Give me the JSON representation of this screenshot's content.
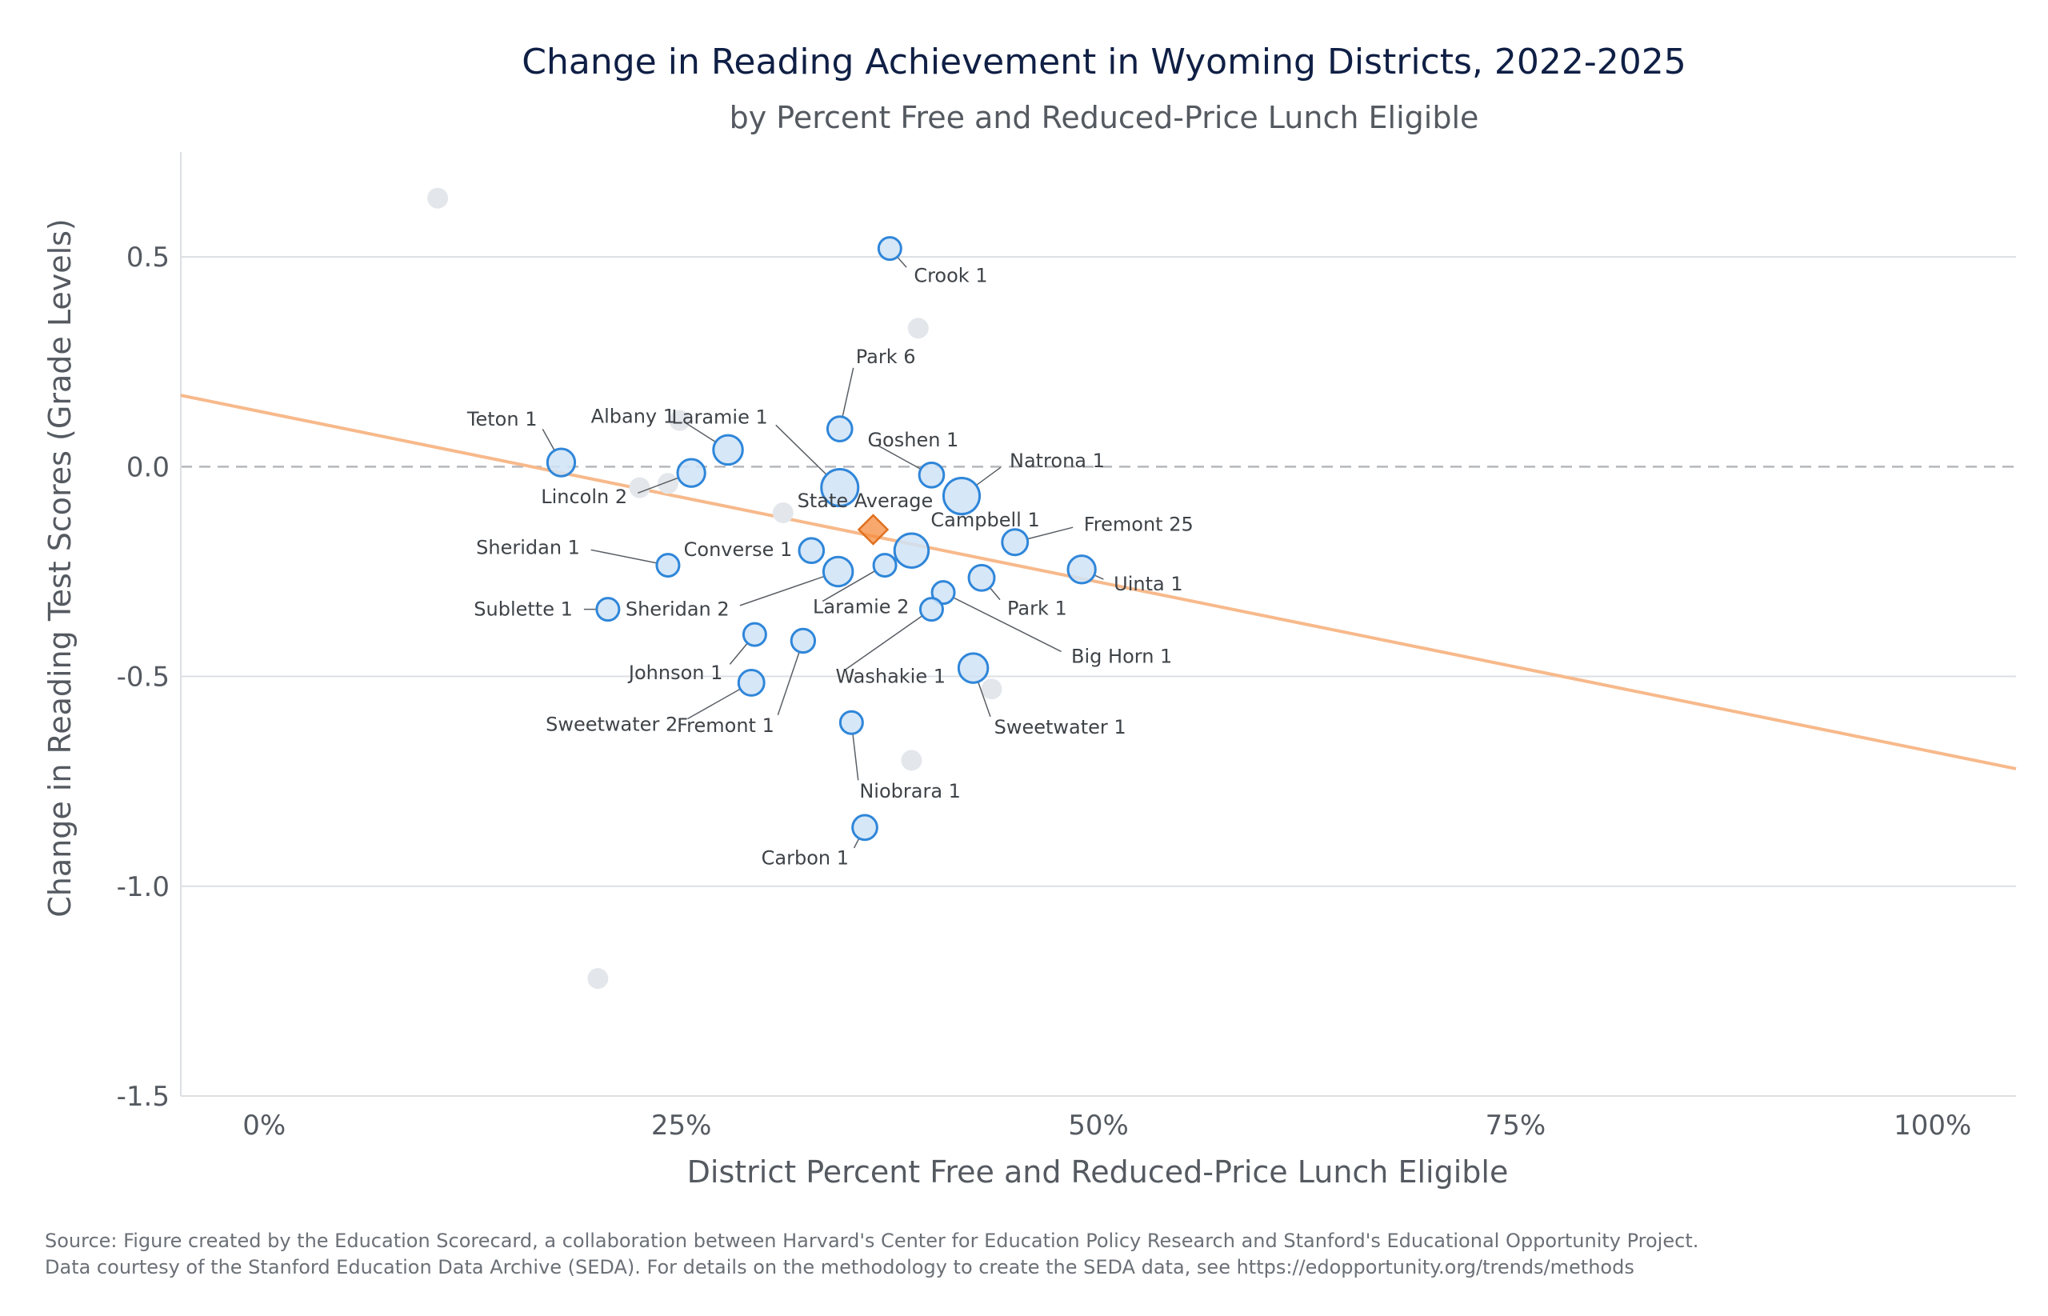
{
  "chart_data": {
    "type": "scatter",
    "title": "Change in Reading Achievement in Wyoming Districts, 2022-2025",
    "subtitle": "by Percent Free and Reduced-Price Lunch Eligible",
    "xlabel": "District Percent Free and Reduced-Price Lunch Eligible",
    "ylabel": "Change in Reading Test Scores (Grade Levels)",
    "xlim": [
      -5,
      105
    ],
    "ylim": [
      -1.5,
      0.75
    ],
    "x_ticks": [
      0,
      25,
      50,
      75,
      100
    ],
    "x_tick_labels": [
      "0%",
      "25%",
      "50%",
      "75%",
      "100%"
    ],
    "y_ticks": [
      0.5,
      0.0,
      -0.5,
      -1.0,
      -1.5
    ],
    "y_tick_labels": [
      "0.5",
      "0.0",
      "-0.5",
      "-1.0",
      "-1.5"
    ],
    "reference_line_y": 0.0,
    "trend_line": {
      "x": [
        -5,
        105
      ],
      "y": [
        0.17,
        -0.72
      ],
      "color": "#f7b98b"
    },
    "state_average": {
      "label": "State Average",
      "x": 36.5,
      "y": -0.15,
      "color": "#f58b3c"
    },
    "districts": [
      {
        "name": "Crook 1",
        "x": 37.5,
        "y": 0.52,
        "size": 1
      },
      {
        "name": "Park 6",
        "x": 34.5,
        "y": 0.09,
        "size": 1.2
      },
      {
        "name": "Teton 1",
        "x": 17.8,
        "y": 0.01,
        "size": 1.5
      },
      {
        "name": "Albany 1",
        "x": 27.8,
        "y": 0.04,
        "size": 1.7
      },
      {
        "name": "Lincoln 2",
        "x": 25.6,
        "y": -0.015,
        "size": 1.5
      },
      {
        "name": "Laramie 1",
        "x": 34.5,
        "y": -0.05,
        "size": 2.7
      },
      {
        "name": "Goshen 1",
        "x": 40.0,
        "y": -0.02,
        "size": 1.2
      },
      {
        "name": "Natrona 1",
        "x": 41.8,
        "y": -0.07,
        "size": 2.6
      },
      {
        "name": "Campbell 1",
        "x": 38.8,
        "y": -0.2,
        "size": 2.3
      },
      {
        "name": "Fremont 25",
        "x": 45.0,
        "y": -0.18,
        "size": 1.3
      },
      {
        "name": "Sheridan 1",
        "x": 24.2,
        "y": -0.235,
        "size": 1
      },
      {
        "name": "Converse 1",
        "x": 32.8,
        "y": -0.2,
        "size": 1.2
      },
      {
        "name": "Sheridan 2",
        "x": 34.4,
        "y": -0.25,
        "size": 1.7
      },
      {
        "name": "Laramie 2",
        "x": 37.2,
        "y": -0.235,
        "size": 1
      },
      {
        "name": "Uinta 1",
        "x": 49.0,
        "y": -0.245,
        "size": 1.5
      },
      {
        "name": "Park 1",
        "x": 43.0,
        "y": -0.265,
        "size": 1.3
      },
      {
        "name": "Sublette 1",
        "x": 20.6,
        "y": -0.34,
        "size": 1
      },
      {
        "name": "Big Horn 1",
        "x": 40.7,
        "y": -0.3,
        "size": 1
      },
      {
        "name": "Washakie 1",
        "x": 40.0,
        "y": -0.34,
        "size": 1
      },
      {
        "name": "Johnson 1",
        "x": 29.4,
        "y": -0.4,
        "size": 1
      },
      {
        "name": "Fremont 1",
        "x": 32.3,
        "y": -0.415,
        "size": 1.1
      },
      {
        "name": "Sweetwater 1",
        "x": 42.5,
        "y": -0.48,
        "size": 1.7
      },
      {
        "name": "Sweetwater 2",
        "x": 29.2,
        "y": -0.515,
        "size": 1.3
      },
      {
        "name": "Niobrara 1",
        "x": 35.2,
        "y": -0.61,
        "size": 1
      },
      {
        "name": "Carbon 1",
        "x": 36.0,
        "y": -0.86,
        "size": 1.2
      }
    ],
    "other_districts": [
      {
        "x": 10.4,
        "y": 0.64
      },
      {
        "x": 39.2,
        "y": 0.33
      },
      {
        "x": 24.9,
        "y": 0.11
      },
      {
        "x": 22.5,
        "y": -0.05
      },
      {
        "x": 24.2,
        "y": -0.04
      },
      {
        "x": 31.1,
        "y": -0.11
      },
      {
        "x": 43.6,
        "y": -0.53
      },
      {
        "x": 38.8,
        "y": -0.7
      },
      {
        "x": 20.0,
        "y": -1.22
      }
    ],
    "colors": {
      "district_fill": "#cfe3f7",
      "district_stroke": "#2f86d9",
      "other_fill": "#e3e7eb",
      "grid": "#dcdfe3",
      "zero_line": "#b5b8bc"
    }
  },
  "source": {
    "line1": "Source: Figure created by the Education Scorecard, a collaboration between Harvard's Center for Education Policy Research and Stanford's Educational Opportunity Project.",
    "line2": "Data courtesy of the Stanford Education Data Archive (SEDA). For details on the methodology to create the SEDA data, see https://edopportunity.org/trends/methods"
  }
}
